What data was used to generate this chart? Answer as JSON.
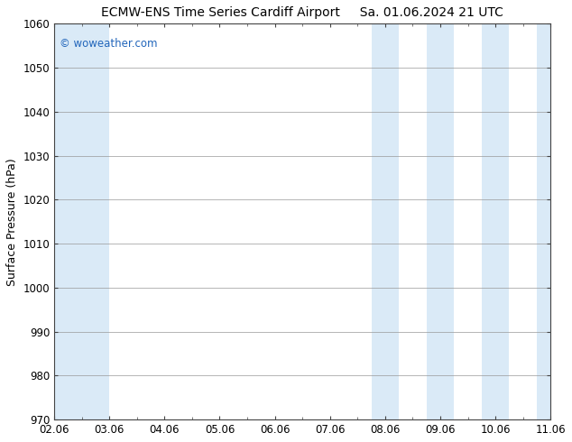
{
  "title_left": "ECMW-ENS Time Series Cardiff Airport",
  "title_right": "Sa. 01.06.2024 21 UTC",
  "ylabel": "Surface Pressure (hPa)",
  "ylim": [
    970,
    1060
  ],
  "yticks": [
    970,
    980,
    990,
    1000,
    1010,
    1020,
    1030,
    1040,
    1050,
    1060
  ],
  "xlim": [
    0,
    9
  ],
  "xtick_labels": [
    "02.06",
    "03.06",
    "04.06",
    "05.06",
    "06.06",
    "07.06",
    "08.06",
    "09.06",
    "10.06",
    "11.06"
  ],
  "xtick_positions": [
    0,
    1,
    2,
    3,
    4,
    5,
    6,
    7,
    8,
    9
  ],
  "background_color": "#ffffff",
  "plot_bg_color": "#ffffff",
  "shaded_bands": [
    {
      "x_start": 0.0,
      "x_end": 1.0,
      "color": "#daeaf7"
    },
    {
      "x_start": 5.75,
      "x_end": 6.25,
      "color": "#daeaf7"
    },
    {
      "x_start": 6.75,
      "x_end": 7.25,
      "color": "#daeaf7"
    },
    {
      "x_start": 7.75,
      "x_end": 8.25,
      "color": "#daeaf7"
    },
    {
      "x_start": 8.75,
      "x_end": 9.0,
      "color": "#daeaf7"
    }
  ],
  "watermark_text": "© woweather.com",
  "watermark_color": "#2266bb",
  "title_fontsize": 10,
  "ylabel_fontsize": 9,
  "tick_fontsize": 8.5,
  "grid_color": "#999999",
  "grid_linewidth": 0.5,
  "border_color": "#444444",
  "border_linewidth": 0.8
}
